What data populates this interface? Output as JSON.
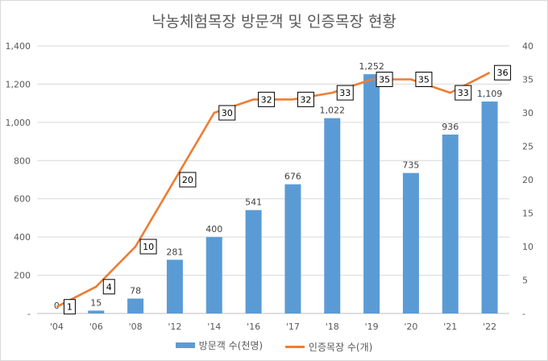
{
  "chart_data": {
    "type": "bar",
    "title": "낙농체험목장 방문객 및 인증목장 현황",
    "categories": [
      "'04",
      "'06",
      "'08",
      "'12",
      "'14",
      "'16",
      "'17",
      "'18",
      "'19",
      "'20",
      "'21",
      "'22"
    ],
    "series": [
      {
        "name": "방문객 수(천명)",
        "type": "bar",
        "axis": "left",
        "color": "#5b9bd5",
        "values": [
          0,
          15,
          78,
          281,
          400,
          541,
          676,
          1022,
          1252,
          735,
          936,
          1109
        ],
        "labels": [
          "0",
          "15",
          "78",
          "281",
          "400",
          "541",
          "676",
          "1,022",
          "1,252",
          "735",
          "936",
          "1,109"
        ]
      },
      {
        "name": "인증목장 수(개)",
        "type": "line",
        "axis": "right",
        "color": "#ed7d31",
        "values": [
          1,
          4,
          10,
          20,
          30,
          32,
          32,
          33,
          35,
          35,
          33,
          36
        ],
        "labels": [
          "1",
          "4",
          "10",
          "20",
          "30",
          "32",
          "32",
          "33",
          "35",
          "35",
          "33",
          "36"
        ]
      }
    ],
    "y_left": {
      "min": 0,
      "max": 1400,
      "ticks": [
        "-",
        "200",
        "400",
        "600",
        "800",
        "1,000",
        "1,200",
        "1,400"
      ]
    },
    "y_right": {
      "min": 0,
      "max": 40,
      "ticks": [
        "-",
        "5",
        "10",
        "15",
        "20",
        "25",
        "30",
        "35",
        "40"
      ]
    },
    "grid": true,
    "legend": "bottom"
  }
}
